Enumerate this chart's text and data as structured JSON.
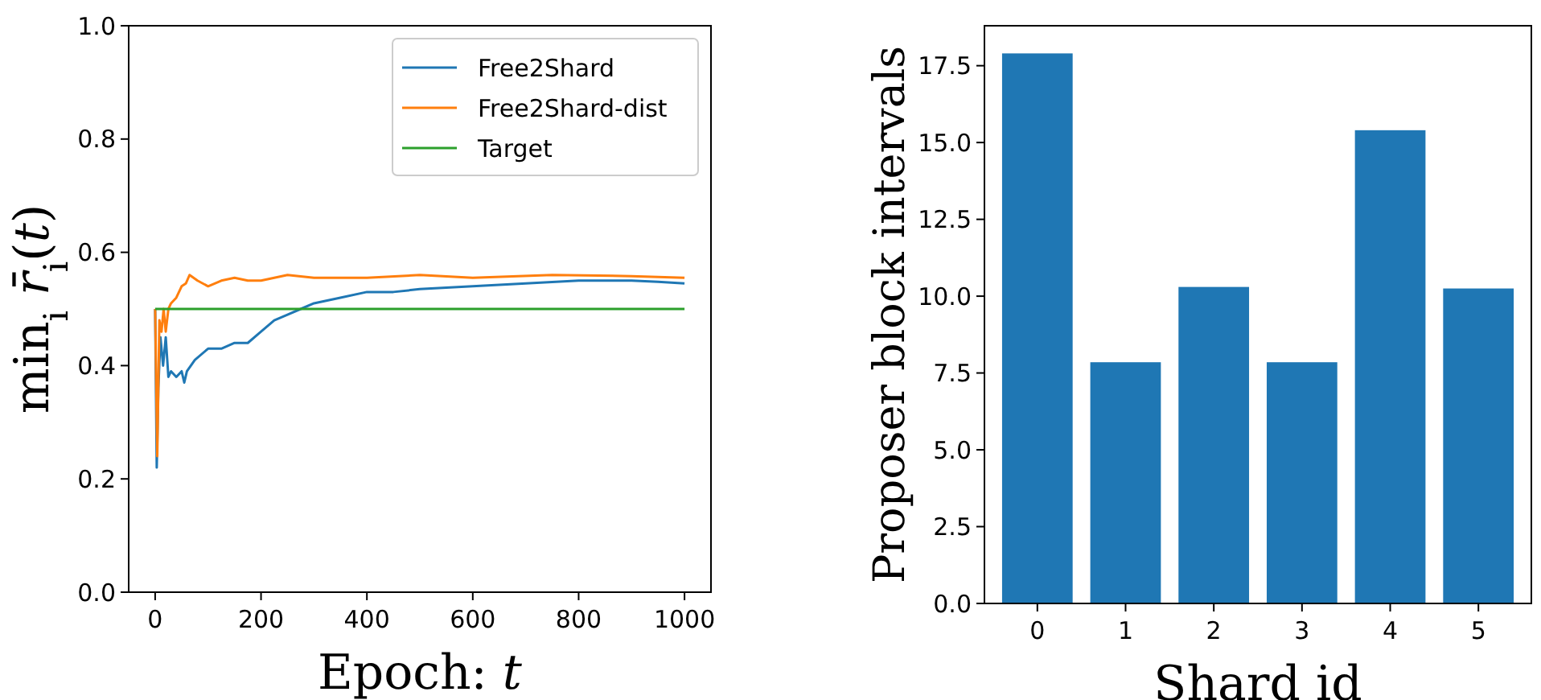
{
  "chart_data": [
    {
      "type": "line",
      "xlabel": "Epoch: 𝑡",
      "ylabel": "min$_{i}$ 𝑟̄$_{i}$(𝑡)",
      "xlim": [
        -50,
        1050
      ],
      "ylim": [
        0,
        1
      ],
      "xticks": [
        0,
        200,
        400,
        600,
        800,
        1000
      ],
      "yticks": [
        {
          "value": 0,
          "label": "0.0"
        },
        0.2,
        0.4,
        0.6,
        0.8,
        {
          "value": 1,
          "label": "1.0"
        }
      ],
      "grid": false,
      "legend": "top right",
      "series": [
        {
          "name": "Free2Shard",
          "color": "#1f77b4",
          "x": [
            0,
            3,
            6,
            10,
            15,
            20,
            25,
            30,
            40,
            50,
            55,
            60,
            75,
            100,
            125,
            150,
            175,
            200,
            225,
            250,
            275,
            300,
            350,
            400,
            450,
            500,
            600,
            700,
            800,
            900,
            950,
            1000
          ],
          "values": [
            0.5,
            0.22,
            0.36,
            0.45,
            0.4,
            0.45,
            0.38,
            0.39,
            0.38,
            0.39,
            0.37,
            0.39,
            0.41,
            0.43,
            0.43,
            0.44,
            0.44,
            0.46,
            0.48,
            0.49,
            0.5,
            0.51,
            0.52,
            0.53,
            0.53,
            0.535,
            0.54,
            0.545,
            0.55,
            0.55,
            0.548,
            0.545
          ]
        },
        {
          "name": "Free2Shard-dist",
          "color": "#ff7f0e",
          "x": [
            0,
            4,
            8,
            12,
            16,
            20,
            25,
            30,
            40,
            50,
            58,
            65,
            80,
            100,
            125,
            150,
            175,
            200,
            250,
            300,
            400,
            500,
            600,
            750,
            900,
            1000
          ],
          "values": [
            0.5,
            0.24,
            0.48,
            0.46,
            0.5,
            0.46,
            0.5,
            0.51,
            0.52,
            0.54,
            0.545,
            0.56,
            0.55,
            0.54,
            0.55,
            0.555,
            0.55,
            0.55,
            0.56,
            0.555,
            0.555,
            0.56,
            0.555,
            0.56,
            0.558,
            0.555
          ]
        },
        {
          "name": "Target",
          "color": "#2ca02c",
          "x": [
            0,
            1000
          ],
          "values": [
            0.5,
            0.5
          ]
        }
      ]
    },
    {
      "type": "bar",
      "xlabel": "Shard id",
      "ylabel": "Proposer block intervals",
      "categories": [
        "0",
        "1",
        "2",
        "3",
        "4",
        "5"
      ],
      "values": [
        17.9,
        7.85,
        10.3,
        7.85,
        15.4,
        10.25
      ],
      "color": "#1f77b4",
      "ylim": [
        0,
        18.8
      ],
      "yticks": [
        {
          "value": 0,
          "label": "0.0"
        },
        {
          "value": 2.5,
          "label": "2.5"
        },
        {
          "value": 5,
          "label": "5.0"
        },
        {
          "value": 7.5,
          "label": "7.5"
        },
        {
          "value": 10,
          "label": "10.0"
        },
        {
          "value": 12.5,
          "label": "12.5"
        },
        {
          "value": 15,
          "label": "15.0"
        },
        {
          "value": 17.5,
          "label": "17.5"
        }
      ],
      "grid": false
    }
  ]
}
